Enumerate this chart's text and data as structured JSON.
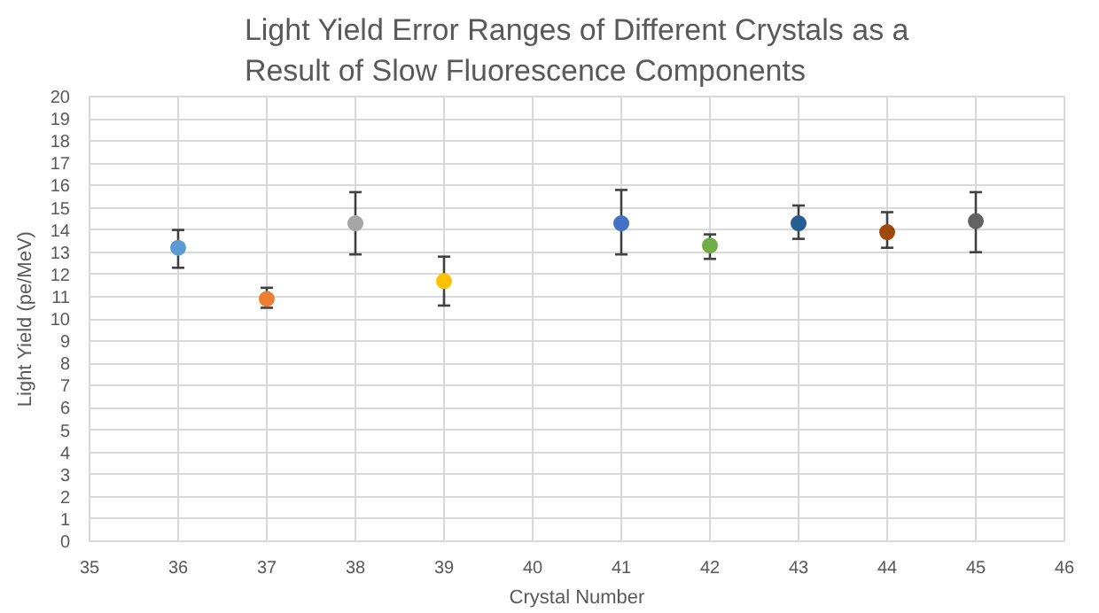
{
  "chart_data": {
    "type": "scatter",
    "title": "Light Yield Error Ranges of Different Crystals as a Result of Slow Fluorescence Components",
    "xlabel": "Crystal Number",
    "ylabel": "Light Yield (pe/MeV)",
    "x": [
      36,
      37,
      38,
      39,
      41,
      42,
      43,
      44,
      45
    ],
    "values": [
      13.2,
      10.9,
      14.3,
      11.7,
      14.3,
      13.3,
      14.3,
      13.9,
      14.4
    ],
    "colors": [
      "#5b9bd5",
      "#ed7d31",
      "#a5a5a5",
      "#ffc000",
      "#4472c4",
      "#70ad47",
      "#255e91",
      "#9e480e",
      "#636363"
    ],
    "errors": [
      [
        12.3,
        14.0
      ],
      [
        10.5,
        11.4
      ],
      [
        12.9,
        15.7
      ],
      [
        10.6,
        12.8
      ],
      [
        12.9,
        15.8
      ],
      [
        12.7,
        13.8
      ],
      [
        13.6,
        15.1
      ],
      [
        13.2,
        14.8
      ],
      [
        13.0,
        15.7
      ]
    ],
    "xlim": [
      35,
      46
    ],
    "xticks": [
      35,
      36,
      37,
      38,
      39,
      40,
      41,
      42,
      43,
      44,
      45,
      46
    ],
    "ylim": [
      0,
      20
    ],
    "yticks": [
      0,
      1,
      2,
      3,
      4,
      5,
      6,
      7,
      8,
      9,
      10,
      11,
      12,
      13,
      14,
      15,
      16,
      17,
      18,
      19,
      20
    ],
    "grid": true,
    "marker": "circle"
  }
}
